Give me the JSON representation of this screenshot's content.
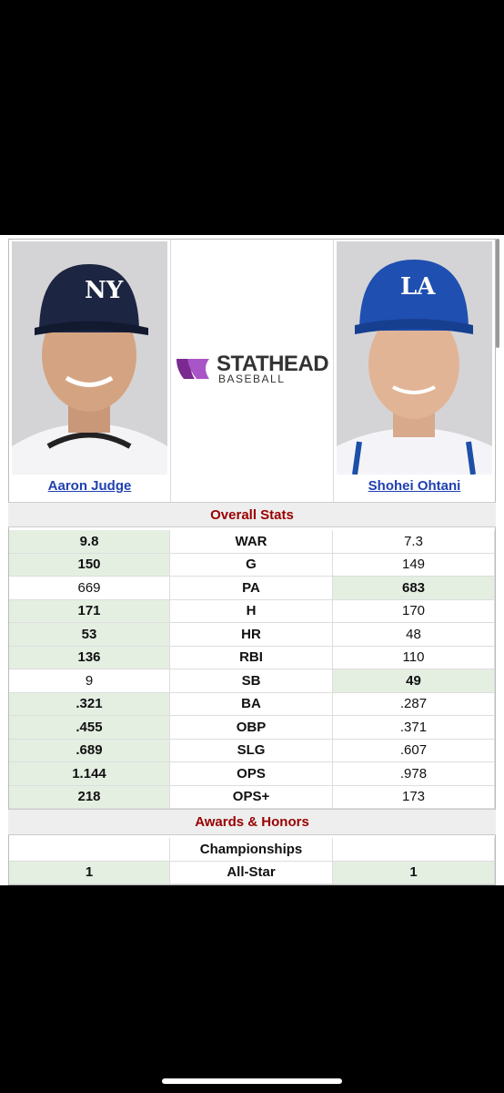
{
  "players": {
    "left": {
      "name": "Aaron Judge"
    },
    "right": {
      "name": "Shohei Ohtani"
    }
  },
  "logo": {
    "main": "STATHEAD",
    "sub": "BASEBALL"
  },
  "sections": [
    {
      "title": "Overall Stats",
      "rows": [
        {
          "left": "9.8",
          "stat": "WAR",
          "right": "7.3",
          "highlight": "left"
        },
        {
          "left": "150",
          "stat": "G",
          "right": "149",
          "highlight": "left"
        },
        {
          "left": "669",
          "stat": "PA",
          "right": "683",
          "highlight": "right"
        },
        {
          "left": "171",
          "stat": "H",
          "right": "170",
          "highlight": "left"
        },
        {
          "left": "53",
          "stat": "HR",
          "right": "48",
          "highlight": "left"
        },
        {
          "left": "136",
          "stat": "RBI",
          "right": "110",
          "highlight": "left"
        },
        {
          "left": "9",
          "stat": "SB",
          "right": "49",
          "highlight": "right"
        },
        {
          "left": ".321",
          "stat": "BA",
          "right": ".287",
          "highlight": "left"
        },
        {
          "left": ".455",
          "stat": "OBP",
          "right": ".371",
          "highlight": "left"
        },
        {
          "left": ".689",
          "stat": "SLG",
          "right": ".607",
          "highlight": "left"
        },
        {
          "left": "1.144",
          "stat": "OPS",
          "right": ".978",
          "highlight": "left"
        },
        {
          "left": "218",
          "stat": "OPS+",
          "right": "173",
          "highlight": "left"
        }
      ]
    },
    {
      "title": "Awards & Honors",
      "rows": [
        {
          "left": null,
          "stat": "Championships",
          "right": null,
          "highlight": "none"
        },
        {
          "left": "1",
          "stat": "All-Star",
          "right": "1",
          "highlight": "both"
        }
      ]
    }
  ]
}
